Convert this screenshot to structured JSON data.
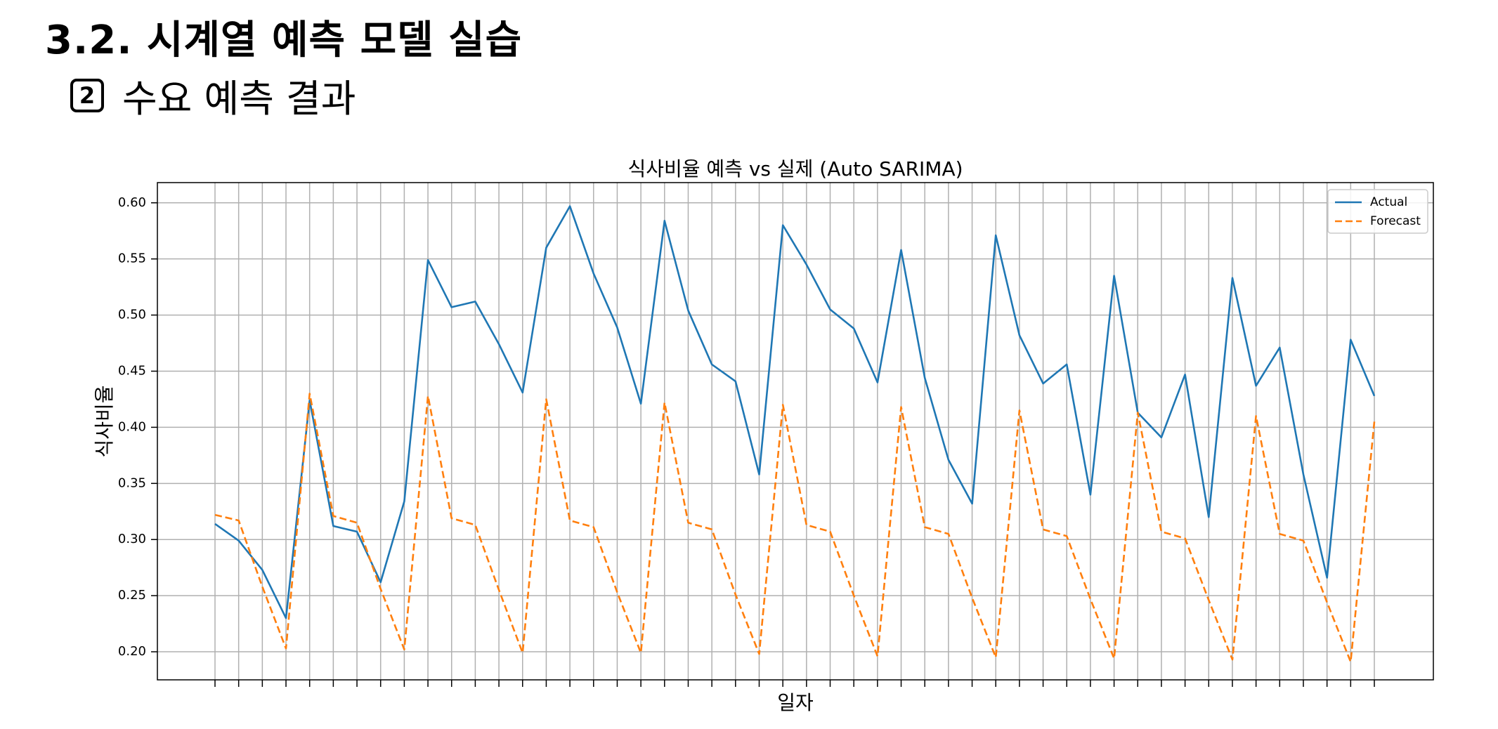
{
  "page": {
    "title": "3.2. 시계열 예측 모델 실습",
    "badge": "2",
    "subheading": "수요 예측 결과"
  },
  "chart_data": {
    "type": "line",
    "title": "식사비율 예측 vs 실제 (Auto SARIMA)",
    "xlabel": "일자",
    "ylabel": "식사비율",
    "ylim": [
      0.175,
      0.618
    ],
    "yticks": [
      "0.20",
      "0.25",
      "0.30",
      "0.35",
      "0.40",
      "0.45",
      "0.50",
      "0.55",
      "0.60"
    ],
    "x_count": 50,
    "x_tick_labels": "none",
    "grid": true,
    "legend_position": "top-right",
    "series": [
      {
        "name": "Actual",
        "color": "#1f77b4",
        "style": "solid",
        "values": [
          0.314,
          0.299,
          0.273,
          0.23,
          0.424,
          0.312,
          0.307,
          0.262,
          0.334,
          0.549,
          0.507,
          0.512,
          0.474,
          0.431,
          0.56,
          0.597,
          0.537,
          0.489,
          0.421,
          0.584,
          0.504,
          0.456,
          0.441,
          0.358,
          0.58,
          0.545,
          0.505,
          0.488,
          0.44,
          0.558,
          0.444,
          0.371,
          0.332,
          0.571,
          0.482,
          0.439,
          0.456,
          0.34,
          0.535,
          0.413,
          0.391,
          0.447,
          0.32,
          0.533,
          0.437,
          0.471,
          0.358,
          0.266,
          0.478,
          0.428
        ]
      },
      {
        "name": "Forecast",
        "color": "#ff7f0e",
        "style": "dashed",
        "values": [
          0.322,
          0.317,
          0.258,
          0.203,
          0.43,
          0.321,
          0.315,
          0.256,
          0.202,
          0.428,
          0.319,
          0.313,
          0.255,
          0.199,
          0.425,
          0.317,
          0.311,
          0.253,
          0.199,
          0.422,
          0.315,
          0.309,
          0.251,
          0.198,
          0.42,
          0.313,
          0.307,
          0.25,
          0.196,
          0.418,
          0.311,
          0.305,
          0.248,
          0.195,
          0.415,
          0.309,
          0.303,
          0.247,
          0.194,
          0.413,
          0.307,
          0.301,
          0.246,
          0.193,
          0.41,
          0.305,
          0.299,
          0.244,
          0.191,
          0.405
        ]
      }
    ]
  }
}
